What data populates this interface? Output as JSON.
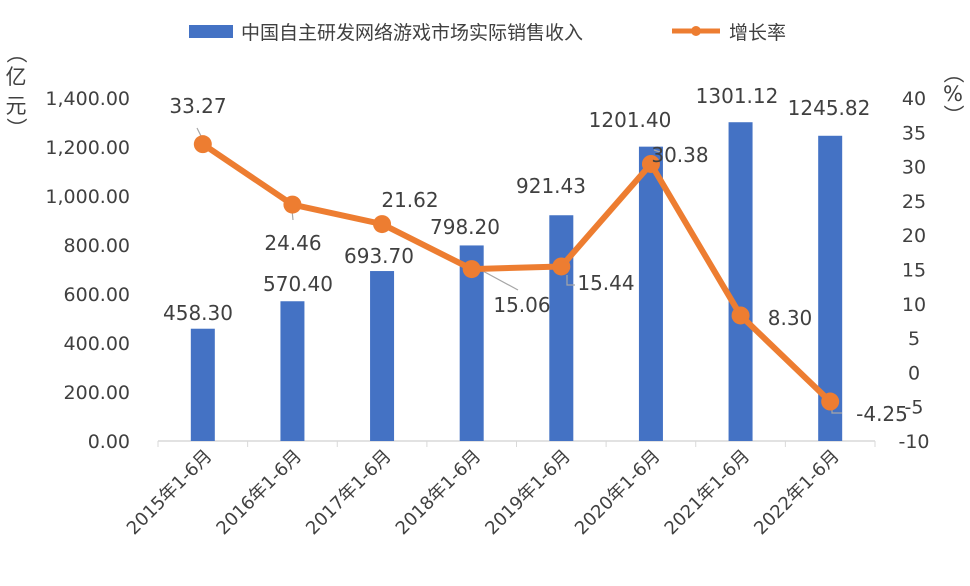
{
  "chart_data": {
    "type": "bar+line",
    "categories": [
      "2015年1-6月",
      "2016年1-6月",
      "2017年1-6月",
      "2018年1-6月",
      "2019年1-6月",
      "2020年1-6月",
      "2021年1-6月",
      "2022年1-6月"
    ],
    "series": [
      {
        "name": "中国自主研发网络游戏市场实际销售收入",
        "type": "bar",
        "axis": "left",
        "color": "#4472C4",
        "values": [
          458.3,
          570.4,
          693.7,
          798.2,
          921.43,
          1201.4,
          1301.12,
          1245.82
        ],
        "labels": [
          "458.30",
          "570.40",
          "693.70",
          "798.20",
          "921.43",
          "1201.40",
          "1301.12",
          "1245.82"
        ]
      },
      {
        "name": "增长率",
        "type": "line",
        "axis": "right",
        "color": "#ED7D31",
        "values": [
          33.27,
          24.46,
          21.62,
          15.06,
          15.44,
          30.38,
          8.3,
          -4.25
        ],
        "labels": [
          "33.27",
          "24.46",
          "21.62",
          "15.06",
          "15.44",
          "30.38",
          "8.30",
          "-4.25"
        ]
      }
    ],
    "ylabel_left": [
      "（",
      "亿",
      "元",
      "）"
    ],
    "ylabel_right": [
      "（",
      "%",
      "）"
    ],
    "ylim_left": [
      0,
      1400
    ],
    "yticks_left": [
      "0.00",
      "200.00",
      "400.00",
      "600.00",
      "800.00",
      "1,000.00",
      "1,200.00",
      "1,400.00"
    ],
    "ylim_right": [
      -10,
      40
    ],
    "yticks_right": [
      "-10",
      "-5",
      "0",
      "5",
      "10",
      "15",
      "20",
      "25",
      "30",
      "35",
      "40"
    ],
    "grid": false,
    "legend": "top"
  }
}
